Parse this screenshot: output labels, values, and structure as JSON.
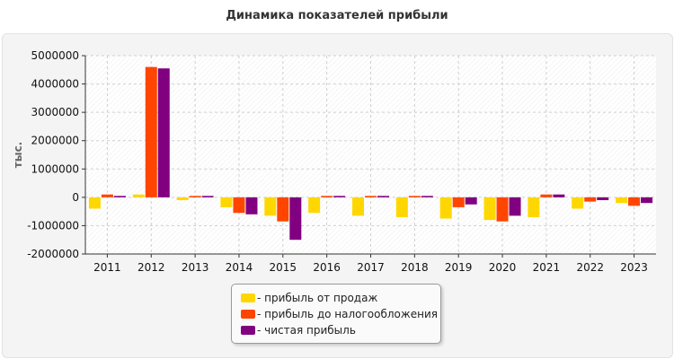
{
  "chart_data": {
    "type": "bar",
    "title": "Динамика показателей прибыли",
    "xlabel": "",
    "ylabel": "тыс.",
    "ylim": [
      -2000000,
      5000000
    ],
    "yticks": [
      "5000000",
      "4000000",
      "3000000",
      "2000000",
      "1000000",
      "0",
      "-1000000",
      "-2000000"
    ],
    "yticks_values": [
      5000000,
      4000000,
      3000000,
      2000000,
      1000000,
      0,
      -1000000,
      -2000000
    ],
    "categories": [
      "2011",
      "2012",
      "2013",
      "2014",
      "2015",
      "2016",
      "2017",
      "2018",
      "2019",
      "2020",
      "2021",
      "2022",
      "2023"
    ],
    "series": [
      {
        "name": "- прибыль от продаж",
        "color": "#ffd700",
        "values": [
          -400000,
          100000,
          -100000,
          -350000,
          -650000,
          -550000,
          -650000,
          -700000,
          -750000,
          -800000,
          -700000,
          -400000,
          -200000
        ]
      },
      {
        "name": "- прибыль до налогообложения",
        "color": "#ff4500",
        "values": [
          100000,
          4600000,
          50000,
          -550000,
          -850000,
          50000,
          50000,
          50000,
          -350000,
          -850000,
          100000,
          -150000,
          -300000
        ]
      },
      {
        "name": "- чистая прибыль",
        "color": "#800080",
        "values": [
          50000,
          4550000,
          50000,
          -600000,
          -1500000,
          50000,
          50000,
          50000,
          -250000,
          -650000,
          100000,
          -100000,
          -200000
        ]
      }
    ],
    "grid": true,
    "legend_position": "bottom"
  }
}
